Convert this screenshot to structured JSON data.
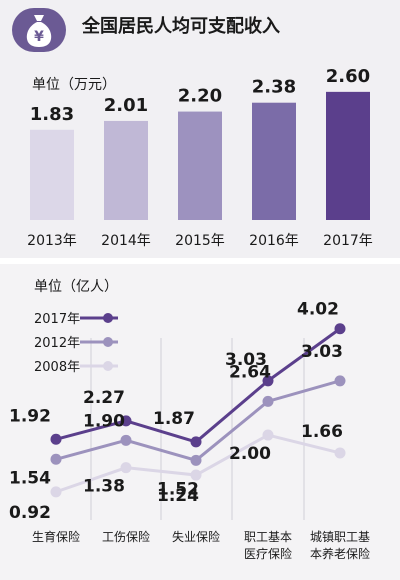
{
  "header": {
    "title": "全国居民人均可支配收入",
    "icon": "money-bag-icon",
    "icon_glyph": "¥"
  },
  "income_chart": {
    "unit": "单位（万元）"
  },
  "insurance_chart": {
    "unit": "单位（亿人）"
  },
  "chart_data": [
    {
      "type": "bar",
      "title": "全国居民人均可支配收入",
      "ylabel": "单位（万元）",
      "categories": [
        "2013年",
        "2014年",
        "2015年",
        "2016年",
        "2017年"
      ],
      "values": [
        1.83,
        2.01,
        2.2,
        2.38,
        2.6
      ],
      "value_labels": [
        "1.83",
        "2.01",
        "2.20",
        "2.38",
        "2.60"
      ],
      "colors": [
        "#dcd7e8",
        "#c0b8d6",
        "#9d92bf",
        "#7b6ca8",
        "#5b3f8c"
      ],
      "ylim": [
        0,
        2.8
      ],
      "grid": false
    },
    {
      "type": "line",
      "ylabel": "单位（亿人）",
      "categories": [
        [
          "生育保险"
        ],
        [
          "工伤保险"
        ],
        [
          "失业保险"
        ],
        [
          "职工基本",
          "医疗保险"
        ],
        [
          "城镇职工基",
          "本养老保险"
        ]
      ],
      "series": [
        {
          "name": "2017年",
          "values": [
            1.92,
            2.27,
            1.87,
            3.03,
            4.02
          ],
          "labels": [
            "1.92",
            "2.27",
            "1.87",
            "3.03",
            "4.02"
          ],
          "color": "#5b3f8c"
        },
        {
          "name": "2012年",
          "values": [
            1.54,
            1.9,
            1.52,
            2.64,
            3.03
          ],
          "labels": [
            "1.54",
            "1.90",
            "1.52",
            "2.64",
            "3.03"
          ],
          "color": "#9c92bd"
        },
        {
          "name": "2008年",
          "values": [
            0.92,
            1.38,
            1.24,
            2.0,
            1.66
          ],
          "labels": [
            "0.92",
            "1.38",
            "1.24",
            "2.00",
            "1.66"
          ],
          "color": "#dbd6e6"
        }
      ],
      "ylim": [
        0.5,
        4.3
      ],
      "legend": "top-left",
      "grid": false
    }
  ]
}
